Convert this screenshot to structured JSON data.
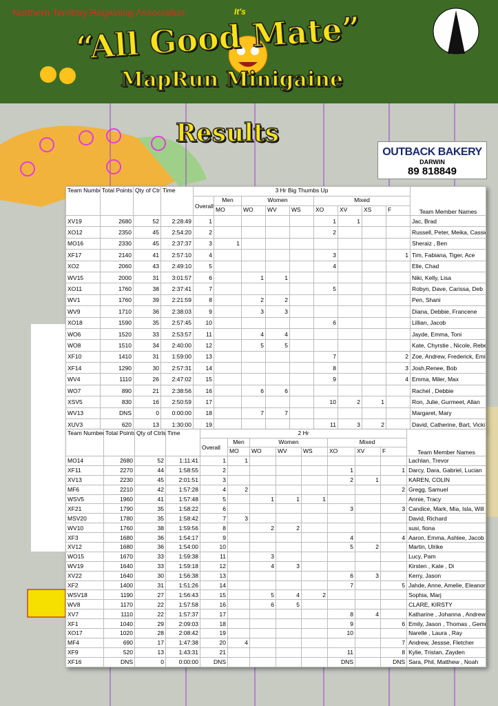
{
  "header": {
    "organisation": "Northern Territory Rogaining Association",
    "tagline": "It's",
    "title": "“All Good Mate”",
    "subtitle": "MapRun Minigaine"
  },
  "results_heading": "Results",
  "sponsor": {
    "name": "OUTBACK BAKERY",
    "city": "DARWIN",
    "phone": "89 818849"
  },
  "tables": [
    {
      "title": "3 Hr Big Thumbs Up",
      "lead_columns": [
        "Team Number",
        "Total Points",
        "Qty of Ctrls",
        "Time"
      ],
      "overall_column": "Overall",
      "groups": [
        {
          "label": "Men",
          "columns": [
            "MO"
          ]
        },
        {
          "label": "Women",
          "columns": [
            "WO",
            "WV",
            "WS"
          ]
        },
        {
          "label": "Mixed",
          "columns": [
            "XO",
            "XV",
            "XS",
            "F"
          ]
        }
      ],
      "names_column": "Team Member Names",
      "rows": [
        [
          "XV19",
          2680,
          52,
          "2:28:49",
          1,
          null,
          null,
          null,
          null,
          1,
          1,
          null,
          null,
          "Jac, Brad"
        ],
        [
          "XO12",
          2350,
          45,
          "2:54:20",
          2,
          null,
          null,
          null,
          null,
          2,
          null,
          null,
          null,
          "Russell, Peter, Meika, Cassidy"
        ],
        [
          "MO16",
          2330,
          45,
          "2:37:37",
          3,
          1,
          null,
          null,
          null,
          null,
          null,
          null,
          null,
          "Sheraiz , Ben"
        ],
        [
          "XF17",
          2140,
          41,
          "2:57:10",
          4,
          null,
          null,
          null,
          null,
          3,
          null,
          null,
          1,
          "Tim, Fabiana, Tiger, Ace"
        ],
        [
          "XO2",
          2060,
          43,
          "2:49:10",
          5,
          null,
          null,
          null,
          null,
          4,
          null,
          null,
          null,
          "Elle, Chad"
        ],
        [
          "WV15",
          2000,
          31,
          "3:01:57",
          6,
          null,
          1,
          1,
          null,
          null,
          null,
          null,
          null,
          "Niki, Kelly, Lisa"
        ],
        [
          "XO11",
          1760,
          38,
          "2:37:41",
          7,
          null,
          null,
          null,
          null,
          5,
          null,
          null,
          null,
          "Robyn, Dave, Carissa, Deb"
        ],
        [
          "WV1",
          1760,
          39,
          "2:21:59",
          8,
          null,
          2,
          2,
          null,
          null,
          null,
          null,
          null,
          "Pen, Shani"
        ],
        [
          "WV9",
          1710,
          36,
          "2:38:03",
          9,
          null,
          3,
          3,
          null,
          null,
          null,
          null,
          null,
          "Diana, Debbie, Francene"
        ],
        [
          "XO18",
          1590,
          35,
          "2:57:45",
          10,
          null,
          null,
          null,
          null,
          6,
          null,
          null,
          null,
          "Lillian, Jacob"
        ],
        [
          "WO6",
          1520,
          33,
          "2:53:57",
          11,
          null,
          4,
          4,
          null,
          null,
          null,
          null,
          null,
          "Jayde, Emma, Toni"
        ],
        [
          "WO8",
          1510,
          34,
          "2:40:00",
          12,
          null,
          5,
          5,
          null,
          null,
          null,
          null,
          null,
          "Kate, Chyrstie , Nicole, Rebecca"
        ],
        [
          "XF10",
          1410,
          31,
          "1:59:00",
          13,
          null,
          null,
          null,
          null,
          7,
          null,
          null,
          2,
          "Zoe, Andrew, Frederick, Emily"
        ],
        [
          "XF14",
          1290,
          30,
          "2:57:31",
          14,
          null,
          null,
          null,
          null,
          8,
          null,
          null,
          3,
          "Josh,Renee, Bob"
        ],
        [
          "WV4",
          1110,
          26,
          "2:47:02",
          15,
          null,
          null,
          null,
          null,
          9,
          null,
          null,
          4,
          "Emma, Miler, Max"
        ],
        [
          "WO7",
          890,
          21,
          "2:38:56",
          16,
          null,
          6,
          6,
          null,
          null,
          null,
          null,
          null,
          "Rachel , Debbie"
        ],
        [
          "XSV5",
          830,
          16,
          "2:50:59",
          17,
          null,
          null,
          null,
          null,
          10,
          2,
          1,
          null,
          "Ron, Julie, Gurmeet, Allan"
        ],
        [
          "WV13",
          "DNS",
          0,
          "0:00:00",
          18,
          null,
          7,
          7,
          null,
          null,
          null,
          null,
          null,
          "Margaret, Mary"
        ],
        [
          "XUV3",
          620,
          13,
          "1:30:00",
          19,
          null,
          null,
          null,
          null,
          11,
          3,
          2,
          null,
          "David, Catherine, Bart, Vicki"
        ]
      ]
    },
    {
      "title": "2 Hr",
      "lead_columns": [
        "Team Number",
        "Total Points",
        "Qty of Ctrls",
        "Time"
      ],
      "overall_column": "Overall",
      "groups": [
        {
          "label": "Men",
          "columns": [
            "MO"
          ]
        },
        {
          "label": "Women",
          "columns": [
            "WO",
            "WV",
            "WS"
          ]
        },
        {
          "label": "Mixed",
          "columns": [
            "XO",
            "XV",
            "F"
          ]
        }
      ],
      "names_column": "Team Member Names",
      "rows": [
        [
          "MO14",
          2680,
          52,
          "1:11:41",
          1,
          1,
          null,
          null,
          null,
          null,
          null,
          null,
          "Lachlan, Trevor"
        ],
        [
          "XF11",
          2270,
          44,
          "1:58:55",
          2,
          null,
          null,
          null,
          null,
          1,
          null,
          1,
          "Darcy, Dara, Gabriel, Lucian"
        ],
        [
          "XV13",
          2230,
          45,
          "2:01:51",
          3,
          null,
          null,
          null,
          null,
          2,
          1,
          null,
          "KAREN, COLIN"
        ],
        [
          "MF6",
          2210,
          42,
          "1:57:28",
          4,
          2,
          null,
          null,
          null,
          null,
          null,
          2,
          "Gregg, Samuel"
        ],
        [
          "WSV5",
          1960,
          41,
          "1:57:48",
          5,
          null,
          1,
          1,
          1,
          null,
          null,
          null,
          "Annie, Tracy"
        ],
        [
          "XF21",
          1790,
          35,
          "1:58:22",
          6,
          null,
          null,
          null,
          null,
          3,
          null,
          3,
          "Candice, Mark, Mia, Isla, Will"
        ],
        [
          "MSV20",
          1780,
          35,
          "1:58:42",
          7,
          3,
          null,
          null,
          null,
          null,
          null,
          null,
          "David, Richard"
        ],
        [
          "WV10",
          1760,
          38,
          "1:59:56",
          8,
          null,
          2,
          2,
          null,
          null,
          null,
          null,
          "susi, fiona"
        ],
        [
          "XF3",
          1680,
          36,
          "1:54:17",
          9,
          null,
          null,
          null,
          null,
          4,
          null,
          4,
          "Aaron, Emma, Ashlee, Jacob"
        ],
        [
          "XV12",
          1680,
          36,
          "1:54:00",
          10,
          null,
          null,
          null,
          null,
          5,
          2,
          null,
          "Martin, Ulrike"
        ],
        [
          "WO15",
          1670,
          33,
          "1:59:38",
          11,
          null,
          3,
          null,
          null,
          null,
          null,
          null,
          "Lucy, Pam"
        ],
        [
          "WV19",
          1640,
          33,
          "1:59:18",
          12,
          null,
          4,
          3,
          null,
          null,
          null,
          null,
          "Kirsten , Kate , Di"
        ],
        [
          "XV22",
          1640,
          30,
          "1:56:38",
          13,
          null,
          null,
          null,
          null,
          6,
          3,
          null,
          "Kerry, Jason"
        ],
        [
          "XF2",
          1400,
          31,
          "1:51:26",
          14,
          null,
          null,
          null,
          null,
          7,
          null,
          5,
          "Jahde, Anne, Amelie, Eleanor"
        ],
        [
          "WSV18",
          1190,
          27,
          "1:56:43",
          15,
          null,
          5,
          4,
          2,
          null,
          null,
          null,
          "Sophia, Marj"
        ],
        [
          "WV8",
          1170,
          22,
          "1:57:58",
          16,
          null,
          6,
          5,
          null,
          null,
          null,
          null,
          "CLARE, KIRSTY"
        ],
        [
          "XV7",
          1110,
          22,
          "1:57:37",
          17,
          null,
          null,
          null,
          null,
          8,
          4,
          null,
          "Katharine , Johanna , Andrew"
        ],
        [
          "XF1",
          1040,
          29,
          "2:09:03",
          18,
          null,
          null,
          null,
          null,
          9,
          null,
          6,
          "Emily, Jason , Thomas , Gemma"
        ],
        [
          "XO17",
          1020,
          28,
          "2:08:42",
          19,
          null,
          null,
          null,
          null,
          10,
          null,
          null,
          "Narelle , Laura , Ray"
        ],
        [
          "MF4",
          690,
          17,
          "1:47:38",
          20,
          4,
          null,
          null,
          null,
          null,
          null,
          7,
          "Andrew, Jessse, Fletcher"
        ],
        [
          "XF9",
          520,
          13,
          "1:43:31",
          21,
          null,
          null,
          null,
          null,
          11,
          null,
          8,
          "Kylie, Tristan, Zayden"
        ],
        [
          "XF16",
          "DNS",
          0,
          "0:00:00",
          "DNS",
          null,
          null,
          null,
          null,
          "DNS",
          null,
          "DNS",
          "Sara, Phil, Matthew , Noah"
        ]
      ]
    }
  ]
}
